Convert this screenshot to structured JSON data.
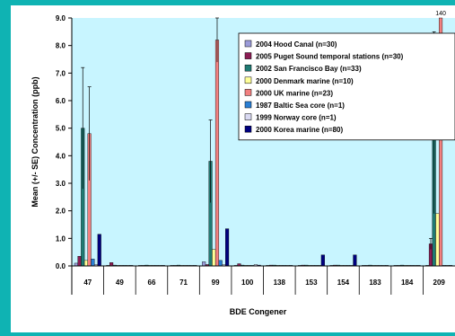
{
  "colors": {
    "page_background": "#0fb3b3",
    "plot_background": "#c8f5ff",
    "legend_background": "#ffffff"
  },
  "chart_data": {
    "type": "bar",
    "title": "",
    "xlabel": "BDE Congener",
    "ylabel": "Mean (+/- SE) Concentration (ppb)",
    "ylim": [
      0,
      9
    ],
    "yticks": [
      "0.0",
      "1.0",
      "2.0",
      "3.0",
      "4.0",
      "5.0",
      "6.0",
      "7.0",
      "8.0",
      "9.0"
    ],
    "categories": [
      "47",
      "49",
      "66",
      "71",
      "99",
      "100",
      "138",
      "153",
      "154",
      "183",
      "184",
      "209"
    ],
    "grid": false,
    "legend_position": "top-right",
    "series": [
      {
        "name": "2004 Hood Canal (n=30)",
        "color": "#9b9bd9",
        "values": [
          0.1,
          0.02,
          0.02,
          0.02,
          0.15,
          0.02,
          0.02,
          0.02,
          0.02,
          0.02,
          0.02,
          0.02
        ],
        "errors": [
          0,
          0,
          0,
          0,
          0,
          0,
          0,
          0,
          0,
          0,
          0,
          0
        ]
      },
      {
        "name": "2005 Puget Sound temporal stations (n=30)",
        "color": "#8b1c54",
        "values": [
          0.35,
          0.12,
          0.02,
          0.02,
          0.05,
          0.08,
          0.03,
          0.03,
          0.03,
          0.02,
          0.02,
          0.8
        ],
        "errors": [
          0,
          0,
          0,
          0,
          0,
          0,
          0,
          0,
          0,
          0,
          0,
          0.2
        ]
      },
      {
        "name": "2002 San Francisco Bay (n=33)",
        "color": "#1f7a73",
        "values": [
          5.0,
          0.03,
          0.03,
          0.03,
          3.8,
          0.03,
          0.03,
          0.03,
          0.03,
          0.03,
          0.03,
          5.2
        ],
        "errors": [
          2.2,
          0,
          0,
          0,
          1.5,
          0,
          0,
          0,
          0,
          0,
          0,
          3.3
        ]
      },
      {
        "name": "2000 Denmark marine (n=10)",
        "color": "#ffff99",
        "values": [
          0.2,
          0.02,
          0.02,
          0.02,
          0.6,
          0.02,
          0.02,
          0.02,
          0.02,
          0.02,
          0.02,
          1.9
        ],
        "errors": [
          0,
          0,
          0,
          0,
          0,
          0,
          0,
          0,
          0,
          0,
          0,
          0
        ]
      },
      {
        "name": "2000 UK marine (n=23)",
        "color": "#f28080",
        "values": [
          4.8,
          0.02,
          0.02,
          0.02,
          8.2,
          0.02,
          0.02,
          0.02,
          0.02,
          0.02,
          0.02,
          9.5
        ],
        "errors": [
          1.7,
          0,
          0,
          0,
          0.8,
          0,
          0,
          0,
          0,
          0,
          0,
          0
        ]
      },
      {
        "name": "1987 Baltic Sea core (n=1)",
        "color": "#2a7fd4",
        "values": [
          0.25,
          0.02,
          0.02,
          0.02,
          0.2,
          0.02,
          0.02,
          0.02,
          0.02,
          0.02,
          0.02,
          0.02
        ],
        "errors": [
          0,
          0,
          0,
          0,
          0,
          0,
          0,
          0,
          0,
          0,
          0,
          0
        ]
      },
      {
        "name": "1999 Norway core (n=1)",
        "color": "#d9d9f2",
        "values": [
          0.05,
          0.02,
          0.02,
          0.02,
          0.05,
          0.05,
          0.02,
          0.02,
          0.02,
          0.02,
          0.02,
          0.02
        ],
        "errors": [
          0,
          0,
          0,
          0,
          0,
          0,
          0,
          0,
          0,
          0,
          0,
          0
        ]
      },
      {
        "name": "2000 Korea marine (n=80)",
        "color": "#00007f",
        "values": [
          1.15,
          0.02,
          0.02,
          0.02,
          1.35,
          0.03,
          0.02,
          0.4,
          0.4,
          0.02,
          0.02,
          0.02
        ],
        "errors": [
          0,
          0,
          0,
          0,
          0,
          0,
          0,
          0,
          0,
          0,
          0,
          0
        ]
      }
    ],
    "annotations": [
      {
        "text": "140",
        "category": "209",
        "series": "2000 UK marine (n=23)"
      }
    ]
  }
}
